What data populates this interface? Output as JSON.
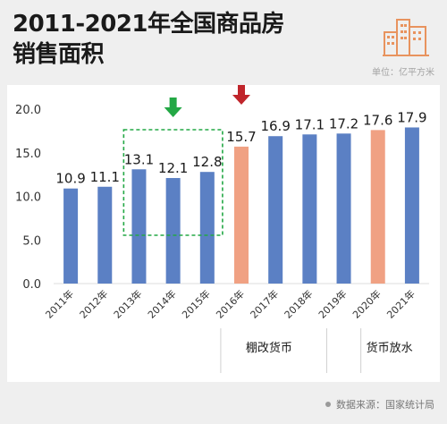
{
  "header": {
    "title_line1": "2011-2021年全国商品房",
    "title_line2": "销售面积",
    "unit": "单位：亿平方米",
    "logo_icon": "city-buildings-icon"
  },
  "footer": {
    "source": "数据来源：国家统计局"
  },
  "annotations": {
    "group1_label": "棚改货币",
    "group2_label": "货币放水"
  },
  "colors": {
    "bar_default": "#5b80c4",
    "bar_highlight": "#f0a183",
    "arrow_green": "#23a845",
    "arrow_red": "#c0252b",
    "box_dashed": "#23a845",
    "logo": "#e8935e"
  },
  "chart_data": {
    "type": "bar",
    "categories": [
      "2011年",
      "2012年",
      "2013年",
      "2014年",
      "2015年",
      "2016年",
      "2017年",
      "2018年",
      "2019年",
      "2020年",
      "2021年"
    ],
    "values": [
      10.9,
      11.1,
      13.1,
      12.1,
      12.8,
      15.7,
      16.9,
      17.1,
      17.2,
      17.6,
      17.9
    ],
    "highlight_indices": [
      5,
      9
    ],
    "ylim": [
      0,
      20
    ],
    "yticks": [
      "0.0",
      "5.0",
      "10.0",
      "15.0",
      "20.0"
    ],
    "grid": false,
    "legend": "none"
  }
}
